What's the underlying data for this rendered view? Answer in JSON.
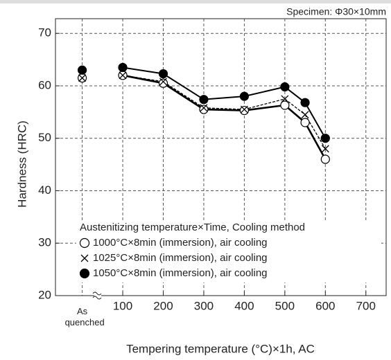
{
  "chart_data": {
    "type": "line",
    "annotation": "Specimen: Φ30×10mm",
    "xlabel": "Tempering temperature (°C)×1h, AC",
    "ylabel": "Hardness (HRC)",
    "legend_title": "Austenitizing temperature×Time, Cooling method",
    "legend": "lower-left",
    "grid": true,
    "x": [
      0,
      100,
      200,
      300,
      400,
      500,
      550,
      600
    ],
    "xlim": [
      -66,
      750
    ],
    "xticks": [
      {
        "value": 0,
        "label": "As quenched"
      },
      100,
      200,
      300,
      400,
      500,
      600,
      700
    ],
    "ylim": [
      20,
      72.8
    ],
    "yticks": [
      20,
      30,
      40,
      50,
      60,
      70
    ],
    "series": [
      {
        "name": "1000°C×8min (immersion), air cooling",
        "color": "#000000",
        "marker": "open-circle",
        "linestyle": "solid",
        "values": [
          61.5,
          62,
          60.5,
          55.5,
          55.3,
          56.3,
          53,
          46
        ]
      },
      {
        "name": "1025°C×8min (immersion), air cooling",
        "color": "#000000",
        "marker": "x",
        "linestyle": "dashed",
        "values": [
          61.5,
          62,
          60.8,
          55.8,
          55.5,
          57.5,
          54.5,
          48
        ]
      },
      {
        "name": "1050°C×8min (immersion), air cooling",
        "color": "#000000",
        "marker": "filled-circle",
        "linestyle": "solid",
        "values": [
          63,
          63.5,
          62.3,
          57.4,
          58,
          59.8,
          56.8,
          50
        ]
      }
    ]
  }
}
